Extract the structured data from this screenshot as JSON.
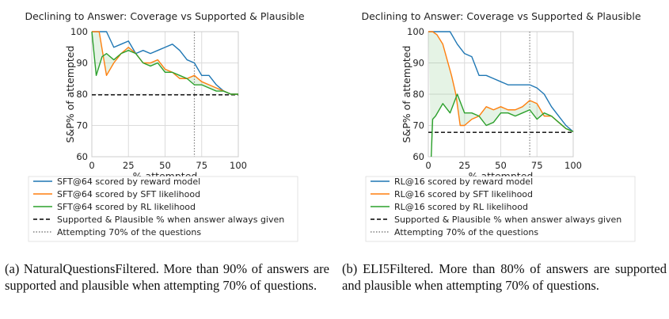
{
  "figures": [
    {
      "caption": "(a) NaturalQuestionsFiltered. More than 90% of answers are supported and plausible when attempting 70% of questions."
    },
    {
      "caption": "(b) ELI5Filtered. More than 80% of answers are supported and plausible when attempting 70% of questions."
    }
  ],
  "chart_data": [
    {
      "type": "line",
      "title": "Declining to Answer: Coverage vs Supported & Plausible",
      "xlabel": "% attempted",
      "ylabel": "S&P% of attempted",
      "xlim": [
        0,
        100
      ],
      "ylim": [
        60,
        100
      ],
      "xticks": [
        0,
        25,
        50,
        75,
        100
      ],
      "yticks": [
        60,
        70,
        80,
        90,
        100
      ],
      "grid": true,
      "legend_position": "below",
      "baseline": {
        "name": "Supported & Plausible % when answer always given",
        "value": 79.8,
        "style": "dashed",
        "color": "#000000"
      },
      "vline": {
        "name": "Attempting 70% of the questions",
        "value": 70,
        "style": "dotted",
        "color": "#808080"
      },
      "series": [
        {
          "name": "SFT@64 scored by reward model",
          "color": "#1f77b4",
          "x": [
            0,
            5,
            10,
            15,
            20,
            25,
            30,
            35,
            40,
            45,
            50,
            55,
            60,
            65,
            70,
            75,
            80,
            85,
            90,
            95,
            100
          ],
          "y": [
            100,
            100,
            100,
            95,
            96,
            97,
            93,
            94,
            93,
            94,
            95,
            96,
            94,
            91,
            90,
            86,
            86,
            83,
            81,
            80,
            80
          ]
        },
        {
          "name": "SFT@64 scored by SFT likelihood",
          "color": "#ff7f0e",
          "x": [
            0,
            5,
            10,
            15,
            20,
            25,
            30,
            35,
            40,
            45,
            50,
            55,
            60,
            65,
            70,
            75,
            80,
            85,
            90,
            95,
            100
          ],
          "y": [
            100,
            100,
            86,
            90,
            93,
            95,
            93,
            90,
            90,
            91,
            88,
            87,
            85,
            85,
            86,
            84,
            83,
            82,
            81,
            80,
            80
          ]
        },
        {
          "name": "SFT@64 scored by RL likelihood",
          "color": "#2ca02c",
          "x": [
            0,
            3,
            7,
            10,
            15,
            20,
            25,
            30,
            35,
            40,
            45,
            50,
            55,
            60,
            65,
            70,
            75,
            80,
            85,
            90,
            95,
            100
          ],
          "y": [
            100,
            86,
            92,
            93,
            91,
            93,
            94,
            93,
            90,
            89,
            90,
            87,
            87,
            86,
            85,
            83,
            83,
            82,
            81,
            81,
            80,
            80
          ]
        }
      ]
    },
    {
      "type": "line",
      "title": "Declining to Answer: Coverage vs Supported & Plausible",
      "xlabel": "% attempted",
      "ylabel": "S&P% of attempted",
      "xlim": [
        0,
        100
      ],
      "ylim": [
        60,
        100
      ],
      "xticks": [
        0,
        25,
        50,
        75,
        100
      ],
      "yticks": [
        60,
        70,
        80,
        90,
        100
      ],
      "grid": true,
      "legend_position": "below",
      "baseline": {
        "name": "Supported & Plausible % when answer always given",
        "value": 67.8,
        "style": "dashed",
        "color": "#000000"
      },
      "vline": {
        "name": "Attempting 70% of the questions",
        "value": 70,
        "style": "dotted",
        "color": "#808080"
      },
      "series": [
        {
          "name": "RL@16 scored by reward model",
          "color": "#1f77b4",
          "x": [
            0,
            5,
            10,
            15,
            20,
            25,
            30,
            35,
            40,
            45,
            50,
            55,
            60,
            65,
            70,
            75,
            80,
            85,
            90,
            95,
            100
          ],
          "y": [
            100,
            100,
            100,
            100,
            96,
            93,
            92,
            86,
            86,
            85,
            84,
            83,
            83,
            83,
            83,
            82,
            80,
            76,
            73,
            70,
            68
          ]
        },
        {
          "name": "RL@16 scored by SFT likelihood",
          "color": "#ff7f0e",
          "x": [
            0,
            3,
            6,
            10,
            13,
            16,
            19,
            22,
            25,
            30,
            35,
            40,
            45,
            50,
            55,
            60,
            65,
            70,
            75,
            80,
            85,
            90,
            95,
            100
          ],
          "y": [
            100,
            100,
            99,
            96,
            91,
            86,
            80,
            70,
            70,
            72,
            73,
            76,
            75,
            76,
            75,
            75,
            76,
            78,
            77,
            73,
            73,
            71,
            69,
            68
          ]
        },
        {
          "name": "RL@16 scored by RL likelihood",
          "color": "#2ca02c",
          "x": [
            2,
            3,
            5,
            10,
            15,
            20,
            25,
            30,
            35,
            40,
            45,
            50,
            55,
            60,
            65,
            70,
            75,
            80,
            85,
            90,
            95,
            100
          ],
          "y": [
            60,
            72,
            73,
            77,
            74,
            80,
            74,
            74,
            73,
            70,
            71,
            74,
            74,
            73,
            74,
            75,
            72,
            74,
            73,
            71,
            69,
            68
          ]
        }
      ]
    }
  ]
}
